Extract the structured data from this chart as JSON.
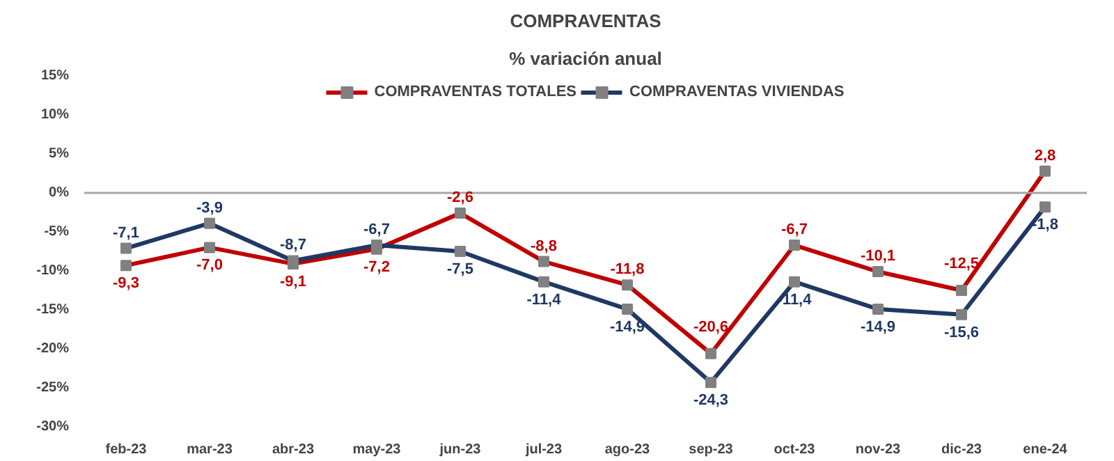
{
  "chart_data": {
    "type": "line",
    "title": "COMPRAVENTAS",
    "subtitle": "% variación anual",
    "categories": [
      "feb-23",
      "mar-23",
      "abr-23",
      "may-23",
      "jun-23",
      "jul-23",
      "ago-23",
      "sep-23",
      "oct-23",
      "nov-23",
      "dic-23",
      "ene-24"
    ],
    "series": [
      {
        "name": "COMPRAVENTAS TOTALES",
        "color": "#c00000",
        "values": [
          -9.3,
          -7.0,
          -9.1,
          -7.2,
          -2.6,
          -8.8,
          -11.8,
          -20.6,
          -6.7,
          -10.1,
          -12.5,
          2.8
        ],
        "value_labels": [
          "-9,3",
          "-7,0",
          "-9,1",
          "-7,2",
          "-2,6",
          "-8,8",
          "-11,8",
          "-20,6",
          "-6,7",
          "-10,1",
          "-12,5",
          "2,8"
        ]
      },
      {
        "name": "COMPRAVENTAS VIVIENDAS",
        "color": "#1f3864",
        "values": [
          -7.1,
          -3.9,
          -8.7,
          -6.7,
          -7.5,
          -11.4,
          -14.9,
          -24.3,
          -11.4,
          -14.9,
          -15.6,
          -1.8
        ],
        "value_labels": [
          "-7,1",
          "-3,9",
          "-8,7",
          "-6,7",
          "-7,5",
          "-11,4",
          "-14,9",
          "-24,3",
          "-11,4",
          "-14,9",
          "-15,6",
          "-1,8"
        ]
      }
    ],
    "ylim": [
      -30,
      15
    ],
    "yticks": [
      {
        "value": -30,
        "label": "-30%"
      },
      {
        "value": -25,
        "label": "-25%"
      },
      {
        "value": -20,
        "label": "-20%"
      },
      {
        "value": -15,
        "label": "-15%"
      },
      {
        "value": -10,
        "label": "-10%"
      },
      {
        "value": -5,
        "label": "-5%"
      },
      {
        "value": 0,
        "label": "0%"
      },
      {
        "value": 5,
        "label": "5%"
      },
      {
        "value": 10,
        "label": "10%"
      },
      {
        "value": 15,
        "label": "15%"
      }
    ],
    "ref_lines": [
      {
        "axis": "y",
        "value": 0,
        "color": "#a6a6a6"
      }
    ],
    "grid": false,
    "legend": "top",
    "marker": "square",
    "line_style": "solid"
  }
}
